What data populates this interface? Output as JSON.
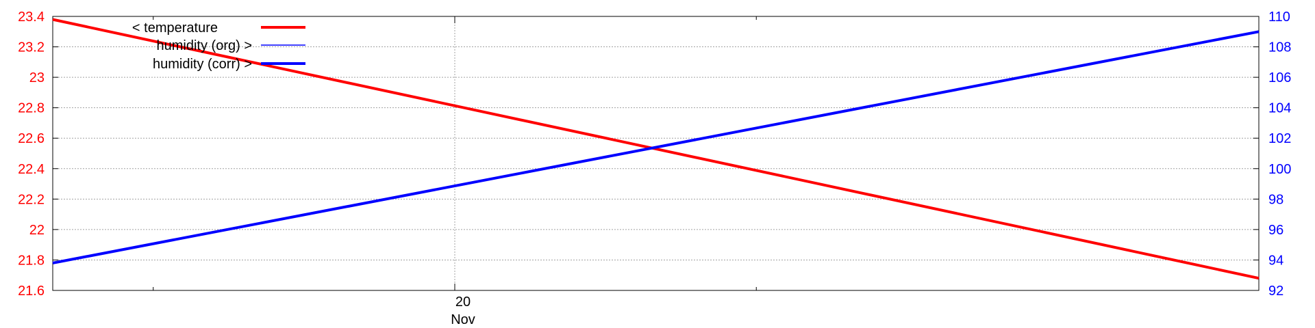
{
  "chart_data": {
    "type": "line",
    "title": "",
    "x_ticks": [
      {
        "date": "2020-11-20",
        "label_day": "20",
        "label_month": "Nov"
      }
    ],
    "x_minor_tick_dates": [
      "2020-11-19T12:00",
      "2020-11-20T12:00"
    ],
    "xlim": [
      "2020-11-19T08:00",
      "2020-11-21T08:00"
    ],
    "y_left": {
      "ylim": [
        21.6,
        23.4
      ],
      "ticks": [
        "21.6",
        "21.8",
        "22",
        "22.2",
        "22.4",
        "22.6",
        "22.8",
        "23",
        "23.2",
        "23.4"
      ],
      "color": "#ff0000"
    },
    "y_right": {
      "ylim": [
        92,
        110
      ],
      "ticks": [
        "92",
        "94",
        "96",
        "98",
        "100",
        "102",
        "104",
        "106",
        "108",
        "110"
      ],
      "color": "#0000ff"
    },
    "grid": true,
    "legend_position": "top-left",
    "series": [
      {
        "name": "< temperature",
        "axis": "left",
        "color": "#ff0000",
        "line_weight": "thick",
        "x": [
          "2020-11-19T08:00",
          "2020-11-21T08:00"
        ],
        "y": [
          23.38,
          21.68
        ]
      },
      {
        "name": "humidity (org) >",
        "axis": "right",
        "color": "#0000ff",
        "line_weight": "thin",
        "x": [
          "2020-11-19T08:00",
          "2020-11-21T08:00"
        ],
        "y": [
          93.8,
          109.0
        ]
      },
      {
        "name": "humidity (corr) >",
        "axis": "right",
        "color": "#0000ff",
        "line_weight": "thick",
        "x": [
          "2020-11-19T08:00",
          "2020-11-21T08:00"
        ],
        "y": [
          93.8,
          109.0
        ]
      }
    ]
  }
}
